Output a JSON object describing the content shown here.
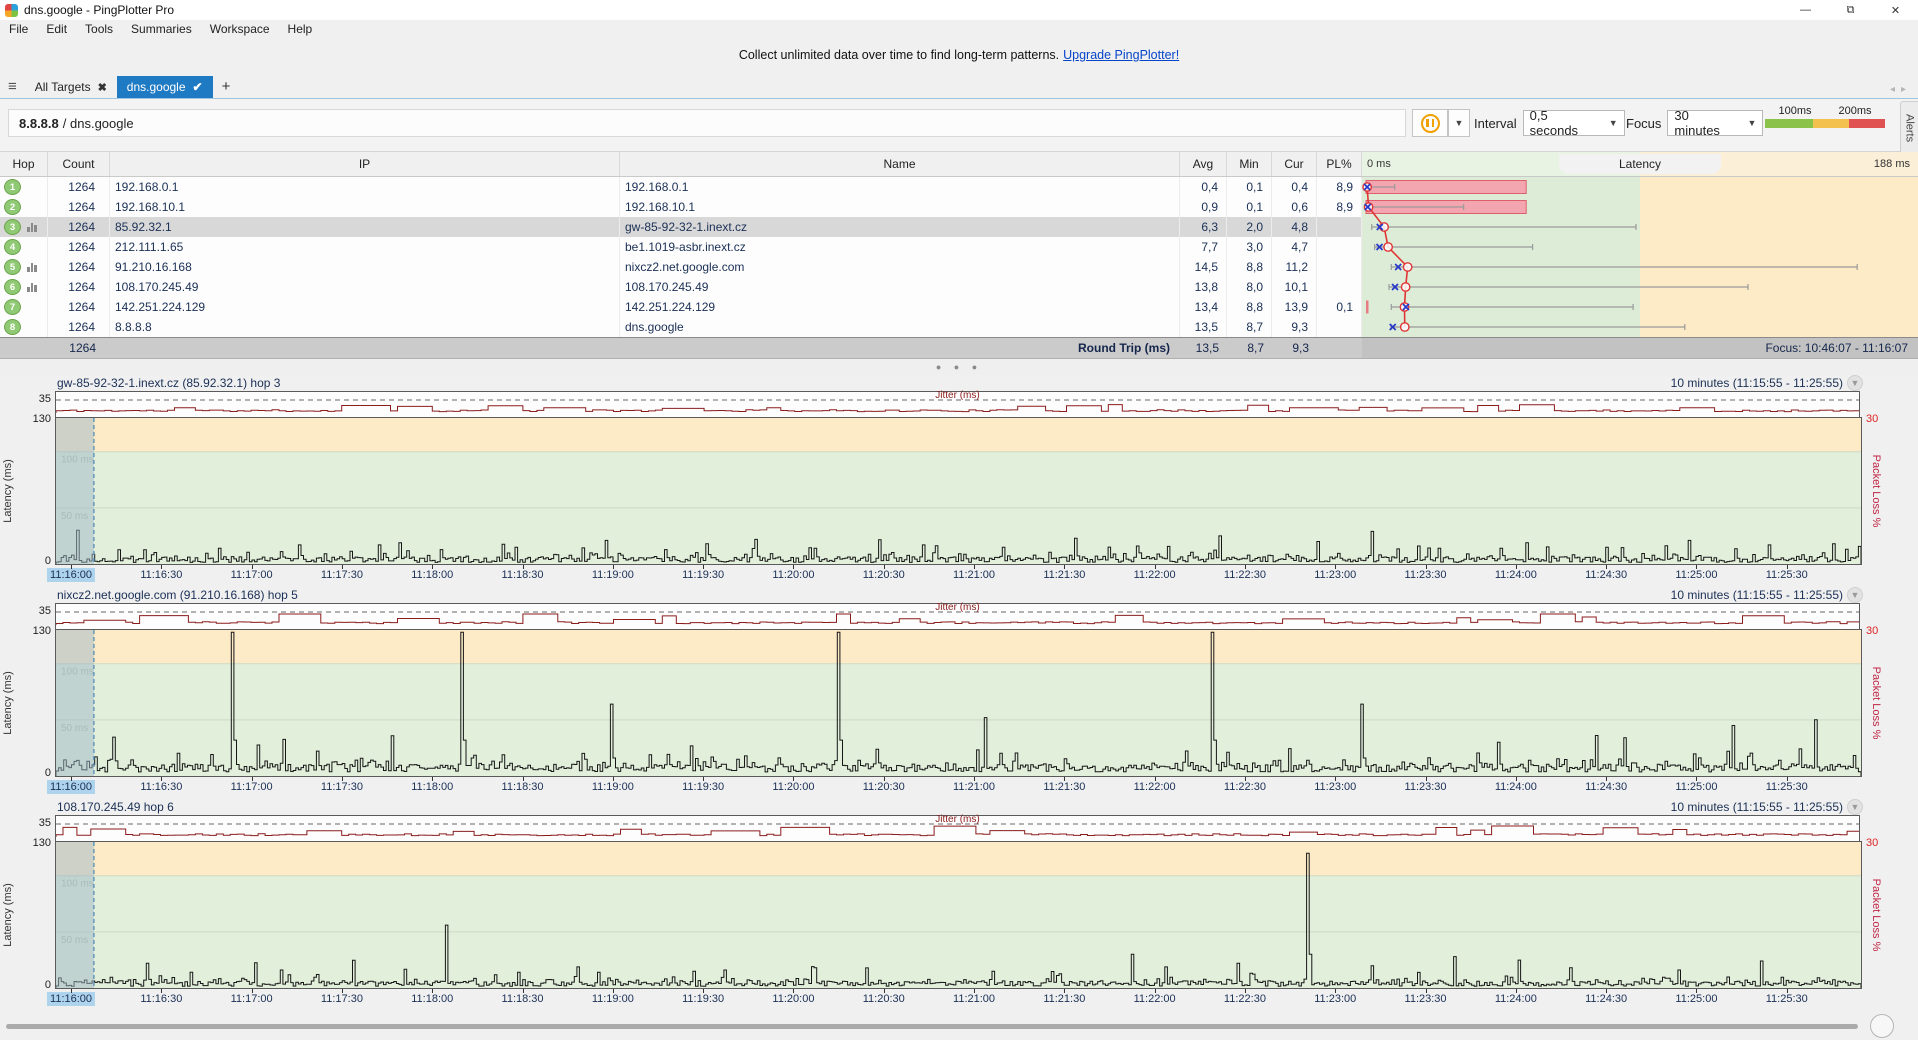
{
  "window": {
    "title": "dns.google - PingPlotter Pro",
    "menus": [
      "File",
      "Edit",
      "Tools",
      "Summaries",
      "Workspace",
      "Help"
    ],
    "buttons": {
      "minimize": "—",
      "restore": "⧉",
      "close": "✕"
    }
  },
  "banner": {
    "text": "Collect unlimited data over time to find long-term patterns.",
    "link": "Upgrade PingPlotter!"
  },
  "tabs": {
    "all_targets": "All Targets",
    "active": "dns.google",
    "add": "+"
  },
  "toolbar": {
    "target_ip": "8.8.8.8",
    "target_sep": " / ",
    "target_name": "dns.google",
    "interval_label": "Interval",
    "interval_value": "0,5 seconds",
    "focus_label": "Focus",
    "focus_value": "30 minutes",
    "legend": {
      "label1": "100ms",
      "label2": "200ms",
      "colors": [
        "#8bc34a",
        "#f2c14e",
        "#e05252"
      ]
    },
    "alerts_tab": "Alerts"
  },
  "table": {
    "headers": {
      "hop": "Hop",
      "count": "Count",
      "ip": "IP",
      "name": "Name",
      "avg": "Avg",
      "min": "Min",
      "cur": "Cur",
      "pl": "PL%",
      "latency_title": "Latency",
      "scale_min": "0 ms",
      "scale_max": "188 ms"
    },
    "rows": [
      {
        "hop": "1",
        "count": "1264",
        "ip": "192.168.0.1",
        "name": "192.168.0.1",
        "avg": "0,4",
        "min": "0,1",
        "cur": "0,4",
        "pl": "8,9",
        "icon": false,
        "selected": false,
        "viz": {
          "min": 0.1,
          "avg": 0.4,
          "cur": 0.4,
          "max": 10,
          "loss": 8.9
        }
      },
      {
        "hop": "2",
        "count": "1264",
        "ip": "192.168.10.1",
        "name": "192.168.10.1",
        "avg": "0,9",
        "min": "0,1",
        "cur": "0,6",
        "pl": "8,9",
        "icon": false,
        "selected": false,
        "viz": {
          "min": 0.1,
          "avg": 0.9,
          "cur": 0.6,
          "max": 34,
          "loss": 8.9
        }
      },
      {
        "hop": "3",
        "count": "1264",
        "ip": "85.92.32.1",
        "name": "gw-85-92-32-1.inext.cz",
        "avg": "6,3",
        "min": "2,0",
        "cur": "4,8",
        "pl": "",
        "icon": true,
        "selected": true,
        "viz": {
          "min": 2.0,
          "avg": 6.3,
          "cur": 4.8,
          "max": 94,
          "loss": 0
        }
      },
      {
        "hop": "4",
        "count": "1264",
        "ip": "212.111.1.65",
        "name": "be1.1019-asbr.inext.cz",
        "avg": "7,7",
        "min": "3,0",
        "cur": "4,7",
        "pl": "",
        "icon": false,
        "selected": false,
        "viz": {
          "min": 3.0,
          "avg": 7.7,
          "cur": 4.7,
          "max": 58,
          "loss": 0
        }
      },
      {
        "hop": "5",
        "count": "1264",
        "ip": "91.210.16.168",
        "name": "nixcz2.net.google.com",
        "avg": "14,5",
        "min": "8,8",
        "cur": "11,2",
        "pl": "",
        "icon": true,
        "selected": false,
        "viz": {
          "min": 8.8,
          "avg": 14.5,
          "cur": 11.2,
          "max": 171,
          "loss": 0
        }
      },
      {
        "hop": "6",
        "count": "1264",
        "ip": "108.170.245.49",
        "name": "108.170.245.49",
        "avg": "13,8",
        "min": "8,0",
        "cur": "10,1",
        "pl": "",
        "icon": true,
        "selected": false,
        "viz": {
          "min": 8.0,
          "avg": 13.8,
          "cur": 10.1,
          "max": 133,
          "loss": 0
        }
      },
      {
        "hop": "7",
        "count": "1264",
        "ip": "142.251.224.129",
        "name": "142.251.224.129",
        "avg": "13,4",
        "min": "8,8",
        "cur": "13,9",
        "pl": "0,1",
        "icon": false,
        "selected": false,
        "viz": {
          "min": 8.8,
          "avg": 13.4,
          "cur": 13.9,
          "max": 93,
          "loss": 0.1
        }
      },
      {
        "hop": "8",
        "count": "1264",
        "ip": "8.8.8.8",
        "name": "dns.google",
        "avg": "13,5",
        "min": "8,7",
        "cur": "9,3",
        "pl": "",
        "icon": false,
        "selected": false,
        "viz": {
          "min": 8.7,
          "avg": 13.5,
          "cur": 9.3,
          "max": 111,
          "loss": 0
        }
      }
    ],
    "latency_axis_max_ms": 188,
    "loss_axis_max_pct": 30,
    "summary": {
      "count": "1264",
      "label": "Round Trip (ms)",
      "avg": "13,5",
      "min": "8,7",
      "cur": "9,3",
      "focus": "Focus: 10:46:07 - 11:16:07"
    }
  },
  "timeline": {
    "range_label": "10 minutes (11:15:55 - 11:25:55)",
    "jitter_label": "Jitter (ms)",
    "jitter_top": "35",
    "y_top": "130",
    "y_bottom": "0",
    "ylabel": "Latency (ms)",
    "grid_labels": {
      "g100": "100 ms",
      "g50": "50 ms"
    },
    "pl_top": "30",
    "pl_label": "Packet Loss %",
    "x_labels": [
      "11:16:00",
      "11:16:30",
      "11:17:00",
      "11:17:30",
      "11:18:00",
      "11:18:30",
      "11:19:00",
      "11:19:30",
      "11:20:00",
      "11:20:30",
      "11:21:00",
      "11:21:30",
      "11:22:00",
      "11:22:30",
      "11:23:00",
      "11:23:30",
      "11:24:00",
      "11:24:30",
      "11:25:00",
      "11:25:30"
    ],
    "graphs": [
      {
        "title": "gw-85-92-32-1.inext.cz (85.92.32.1) hop 3",
        "seed": 11,
        "base": 3.5,
        "noise": 5,
        "jmax": 8,
        "spikes": [
          [
            0.012,
            30
          ],
          [
            0.09,
            14
          ],
          [
            0.135,
            17
          ],
          [
            0.19,
            19
          ],
          [
            0.255,
            15
          ],
          [
            0.305,
            21
          ],
          [
            0.36,
            18
          ],
          [
            0.42,
            14
          ],
          [
            0.48,
            17
          ],
          [
            0.525,
            15
          ],
          [
            0.565,
            23
          ],
          [
            0.6,
            16
          ],
          [
            0.645,
            25
          ],
          [
            0.7,
            20
          ],
          [
            0.755,
            16
          ],
          [
            0.815,
            19
          ],
          [
            0.86,
            15
          ],
          [
            0.905,
            21
          ],
          [
            0.95,
            17
          ],
          [
            0.985,
            18
          ]
        ]
      },
      {
        "title": "nixcz2.net.google.com (91.210.16.168) hop 5",
        "seed": 23,
        "base": 9,
        "noise": 7,
        "jmax": 13,
        "spikes": [
          [
            0.097,
            128
          ],
          [
            0.224,
            128
          ],
          [
            0.307,
            64
          ],
          [
            0.434,
            128
          ],
          [
            0.515,
            52
          ],
          [
            0.641,
            128
          ],
          [
            0.724,
            64
          ],
          [
            0.8,
            30
          ],
          [
            0.87,
            34
          ],
          [
            0.93,
            45
          ],
          [
            0.975,
            50
          ]
        ]
      },
      {
        "title": "108.170.245.49 hop 6",
        "seed": 37,
        "base": 4,
        "noise": 4.5,
        "jmax": 10,
        "spikes": [
          [
            0.05,
            22
          ],
          [
            0.125,
            16
          ],
          [
            0.2155,
            56
          ],
          [
            0.3,
            14
          ],
          [
            0.37,
            16
          ],
          [
            0.42,
            18
          ],
          [
            0.52,
            15
          ],
          [
            0.596,
            30
          ],
          [
            0.655,
            22
          ],
          [
            0.694,
            120
          ],
          [
            0.776,
            28
          ],
          [
            0.84,
            18
          ],
          [
            0.9,
            16
          ],
          [
            0.945,
            24
          ]
        ]
      }
    ],
    "y_max_ms": 130,
    "selection_end_frac": 0.021
  }
}
